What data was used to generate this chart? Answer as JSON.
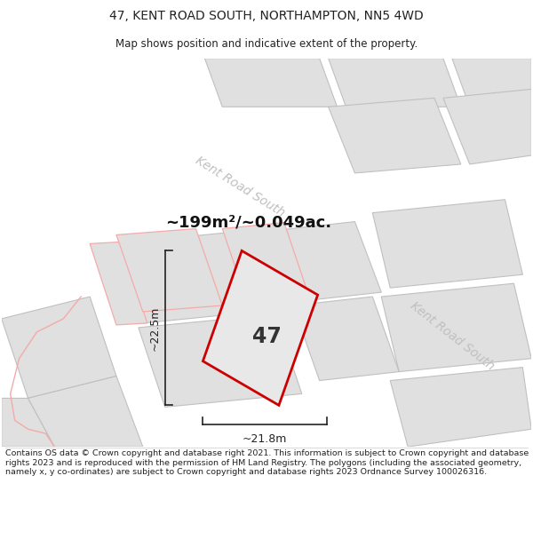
{
  "title_line1": "47, KENT ROAD SOUTH, NORTHAMPTON, NN5 4WD",
  "title_line2": "Map shows position and indicative extent of the property.",
  "area_text": "~199m²/~0.049ac.",
  "label_47": "47",
  "dim_width": "~21.8m",
  "dim_height": "~22.5m",
  "road_label_top": "Kent Road South",
  "road_label_right": "Kent Road South",
  "footer_text": "Contains OS data © Crown copyright and database right 2021. This information is subject to Crown copyright and database rights 2023 and is reproduced with the permission of HM Land Registry. The polygons (including the associated geometry, namely x, y co-ordinates) are subject to Crown copyright and database rights 2023 Ordnance Survey 100026316.",
  "bg_color": "#ffffff",
  "map_bg_color": "#f7f7f7",
  "plot_fill": "#e0e0e0",
  "plot_edge": "#c0c0c0",
  "pink_edge": "#f5aaaa",
  "property_fill": "#e8e8e8",
  "property_edge": "#cc0000",
  "road_label_color": "#c0c0c0",
  "dim_color": "#222222",
  "title_color": "#222222",
  "footer_color": "#222222",
  "area_color": "#111111"
}
